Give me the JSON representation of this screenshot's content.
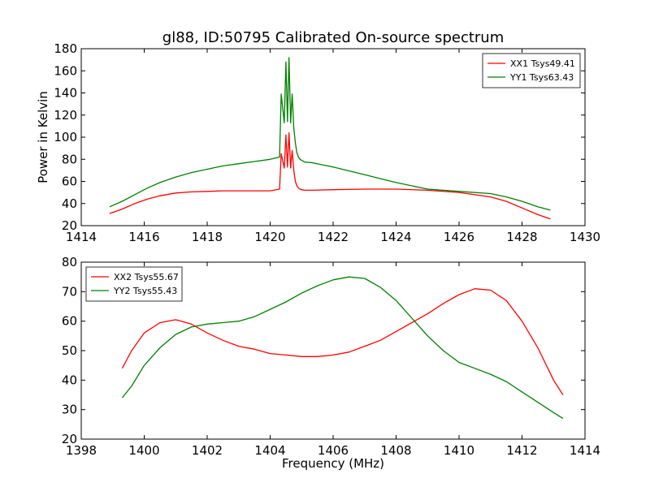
{
  "figure": {
    "title": "gl88, ID:50795 Calibrated On-source spectrum",
    "shared_xlabel": "Frequency (MHz)"
  },
  "colors": {
    "red": "#ff0000",
    "green": "#008000",
    "axis": "#000000"
  },
  "chart_data": [
    {
      "type": "line",
      "title": "gl88, ID:50795 Calibrated On-source spectrum",
      "xlabel": "",
      "ylabel": "Power in Kelvin",
      "xlim": [
        1414,
        1430
      ],
      "ylim": [
        20,
        180
      ],
      "xticks": [
        1414,
        1416,
        1418,
        1420,
        1422,
        1424,
        1426,
        1428,
        1430
      ],
      "yticks": [
        20,
        40,
        60,
        80,
        100,
        120,
        140,
        160,
        180
      ],
      "grid": false,
      "legend": "top-right",
      "series": [
        {
          "name": "XX1 Tsys49.41",
          "color": "#ff0000",
          "x": [
            1414.9,
            1415.3,
            1415.7,
            1416.1,
            1416.5,
            1417.0,
            1417.5,
            1418.0,
            1418.5,
            1419.0,
            1419.5,
            1420.0,
            1420.3,
            1420.35,
            1420.45,
            1420.5,
            1420.55,
            1420.6,
            1420.65,
            1420.7,
            1420.75,
            1420.8,
            1420.85,
            1420.9,
            1420.95,
            1421.0,
            1421.1,
            1421.3,
            1422.0,
            1423.0,
            1424.0,
            1425.0,
            1426.0,
            1427.0,
            1427.5,
            1428.0,
            1428.5,
            1428.9
          ],
          "y": [
            31,
            35,
            40,
            44,
            47,
            49.5,
            50.5,
            51,
            51.5,
            51.5,
            51.5,
            51.5,
            53,
            85,
            72,
            102,
            73,
            104,
            72,
            88,
            70,
            60,
            56,
            54,
            53,
            52.5,
            52,
            52,
            52.5,
            53,
            53,
            52,
            50,
            46,
            42,
            36,
            30,
            26
          ]
        },
        {
          "name": "YY1 Tsys63.43",
          "color": "#008000",
          "x": [
            1414.9,
            1415.3,
            1415.7,
            1416.1,
            1416.5,
            1417.0,
            1417.5,
            1418.0,
            1418.5,
            1419.0,
            1419.5,
            1420.0,
            1420.3,
            1420.35,
            1420.45,
            1420.5,
            1420.55,
            1420.6,
            1420.65,
            1420.7,
            1420.75,
            1420.8,
            1420.85,
            1420.9,
            1420.95,
            1421.0,
            1421.1,
            1421.3,
            1422.0,
            1423.0,
            1424.0,
            1425.0,
            1426.0,
            1427.0,
            1427.5,
            1428.0,
            1428.5,
            1428.9
          ],
          "y": [
            37,
            42,
            48,
            54,
            59,
            64,
            68,
            71,
            74,
            76,
            78,
            80,
            82,
            139,
            113,
            168,
            114,
            172,
            113,
            139,
            108,
            95,
            86,
            82,
            80,
            79,
            77.5,
            77,
            73,
            66,
            59,
            53,
            51,
            49,
            46,
            42,
            37,
            34
          ]
        }
      ]
    },
    {
      "type": "line",
      "title": "",
      "xlabel": "Frequency (MHz)",
      "ylabel": "",
      "xlim": [
        1398,
        1414
      ],
      "ylim": [
        20,
        80
      ],
      "xticks": [
        1398,
        1400,
        1402,
        1404,
        1406,
        1408,
        1410,
        1412,
        1414
      ],
      "yticks": [
        20,
        30,
        40,
        50,
        60,
        70,
        80
      ],
      "grid": false,
      "legend": "top-left",
      "series": [
        {
          "name": "XX2 Tsys55.67",
          "color": "#ff0000",
          "x": [
            1399.3,
            1399.6,
            1400.0,
            1400.5,
            1401.0,
            1401.5,
            1402.0,
            1402.5,
            1403.0,
            1403.5,
            1404.0,
            1404.5,
            1405.0,
            1405.5,
            1406.0,
            1406.5,
            1407.0,
            1407.5,
            1408.0,
            1408.5,
            1409.0,
            1409.5,
            1410.0,
            1410.5,
            1411.0,
            1411.5,
            1412.0,
            1412.5,
            1413.0,
            1413.3
          ],
          "y": [
            44,
            50,
            56,
            59.5,
            60.5,
            59,
            56,
            53.5,
            51.5,
            50.5,
            49,
            48.5,
            48,
            48,
            48.5,
            49.5,
            51.5,
            53.5,
            56.5,
            59.5,
            62.5,
            66,
            69,
            71,
            70.5,
            67,
            60,
            51,
            40,
            35
          ]
        },
        {
          "name": "YY2 Tsys55.43",
          "color": "#008000",
          "x": [
            1399.3,
            1399.6,
            1400.0,
            1400.5,
            1401.0,
            1401.5,
            1402.0,
            1402.5,
            1403.0,
            1403.5,
            1404.0,
            1404.5,
            1405.0,
            1405.5,
            1406.0,
            1406.5,
            1407.0,
            1407.5,
            1408.0,
            1408.5,
            1409.0,
            1409.5,
            1410.0,
            1410.5,
            1411.0,
            1411.5,
            1412.0,
            1412.5,
            1413.0,
            1413.3
          ],
          "y": [
            34,
            38,
            45,
            51,
            55.5,
            58,
            59,
            59.5,
            60,
            61.5,
            64,
            66.5,
            69.5,
            72,
            74,
            75,
            74.5,
            71.5,
            67,
            61,
            55,
            50,
            46,
            44,
            42,
            39.5,
            36,
            32.5,
            29,
            27
          ]
        }
      ]
    }
  ]
}
